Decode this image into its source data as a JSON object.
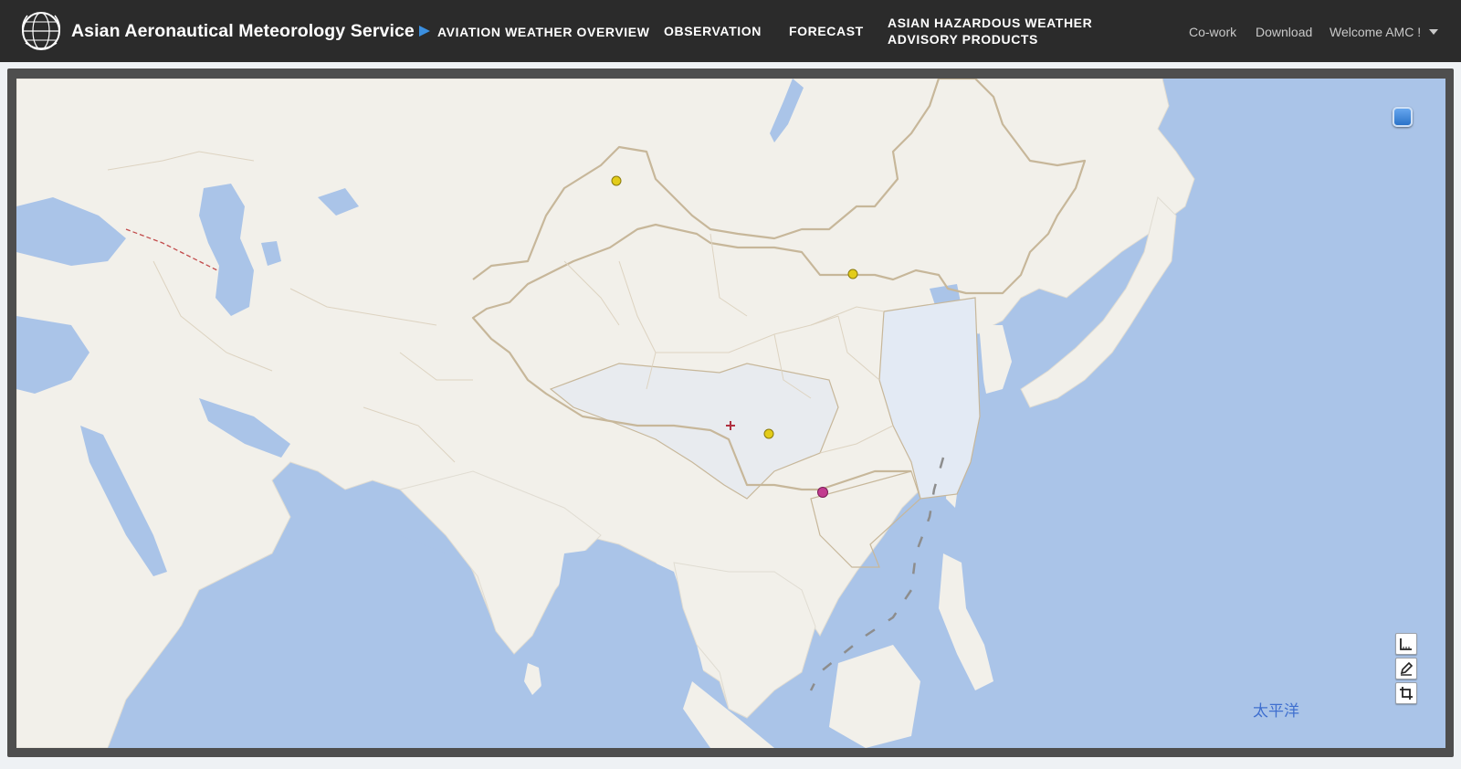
{
  "header": {
    "title": "Asian Aeronautical Meteorology Service",
    "logo_icon": "wmo-globe-icon",
    "nav": [
      {
        "label": "AVIATION WEATHER OVERVIEW",
        "active": true
      },
      {
        "label": "OBSERVATION",
        "active": false
      },
      {
        "label": "FORECAST",
        "active": false
      },
      {
        "label_line1": "ASIAN HAZARDOUS WEATHER",
        "label_line2": "ADVISORY PRODUCTS",
        "active": false
      }
    ],
    "utility": {
      "cowork": "Co-work",
      "download": "Download",
      "welcome": "Welcome AMC !"
    },
    "accent_color": "#3b8fe0"
  },
  "map": {
    "ocean_label": "太平洋",
    "colors": {
      "ocean": "#aac4e8",
      "land": "#f2f0ea",
      "border": "#c7b79a",
      "highlight_region": "#e8ebef"
    },
    "markers": [
      {
        "icon": "yellow-dot-icon",
        "color": "#e3cc1a"
      },
      {
        "icon": "yellow-dot-icon",
        "color": "#e3cc1a"
      },
      {
        "icon": "yellow-dot-icon",
        "color": "#e3cc1a"
      },
      {
        "icon": "magenta-dot-icon",
        "color": "#c23c8f"
      },
      {
        "icon": "red-cross-icon",
        "color": "#b03040"
      }
    ],
    "controls": {
      "layer_switch": "layer-switcher-icon",
      "tools": [
        "ruler-icon",
        "draw-edit-icon",
        "crop-icon"
      ]
    }
  }
}
